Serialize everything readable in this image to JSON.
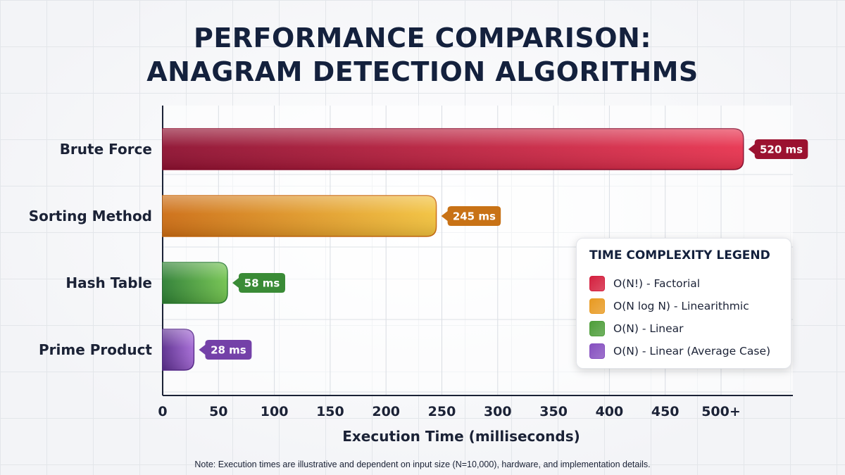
{
  "chart_data": {
    "type": "bar",
    "orientation": "horizontal",
    "title_lines": [
      "PERFORMANCE COMPARISON:",
      "ANAGRAM DETECTION ALGORITHMS"
    ],
    "categories": [
      "Brute Force",
      "Sorting Method",
      "Hash Table",
      "Prime Product"
    ],
    "values": [
      520,
      245,
      58,
      28
    ],
    "value_labels": [
      "520 ms",
      "245 ms",
      "58 ms",
      "28 ms"
    ],
    "xlabel": "Execution Time (milliseconds)",
    "xlim": [
      0,
      550
    ],
    "xticks": [
      0,
      50,
      100,
      150,
      200,
      250,
      300,
      350,
      400,
      450,
      500
    ],
    "xtick_labels": [
      "0",
      "50",
      "100",
      "150",
      "200",
      "250",
      "300",
      "350",
      "400",
      "450",
      "500+"
    ],
    "grid": true,
    "legend_position": "right"
  },
  "series_colors": [
    {
      "dark": "#8e1030",
      "light": "#e8334f",
      "label_bg": "#9b1230"
    },
    {
      "dark": "#cc6c12",
      "light": "#f2c23d",
      "label_bg": "#c87216"
    },
    {
      "dark": "#2c7e32",
      "light": "#72c34e",
      "label_bg": "#3a8b36"
    },
    {
      "dark": "#5b2d8e",
      "light": "#a56ad6",
      "label_bg": "#7441a8"
    }
  ],
  "legend": {
    "title": "TIME COMPLEXITY LEGEND",
    "items": [
      {
        "label": "O(N!) - Factorial",
        "color": "#d4213f"
      },
      {
        "label": "O(N log N) - Linearithmic",
        "color": "#e89a22"
      },
      {
        "label": "O(N) - Linear",
        "color": "#4e9e3a"
      },
      {
        "label": "O(N) - Linear (Average Case)",
        "color": "#8650c0"
      }
    ]
  },
  "note": "Note: Execution times are illustrative and dependent on input size (N=10,000), hardware, and implementation details."
}
